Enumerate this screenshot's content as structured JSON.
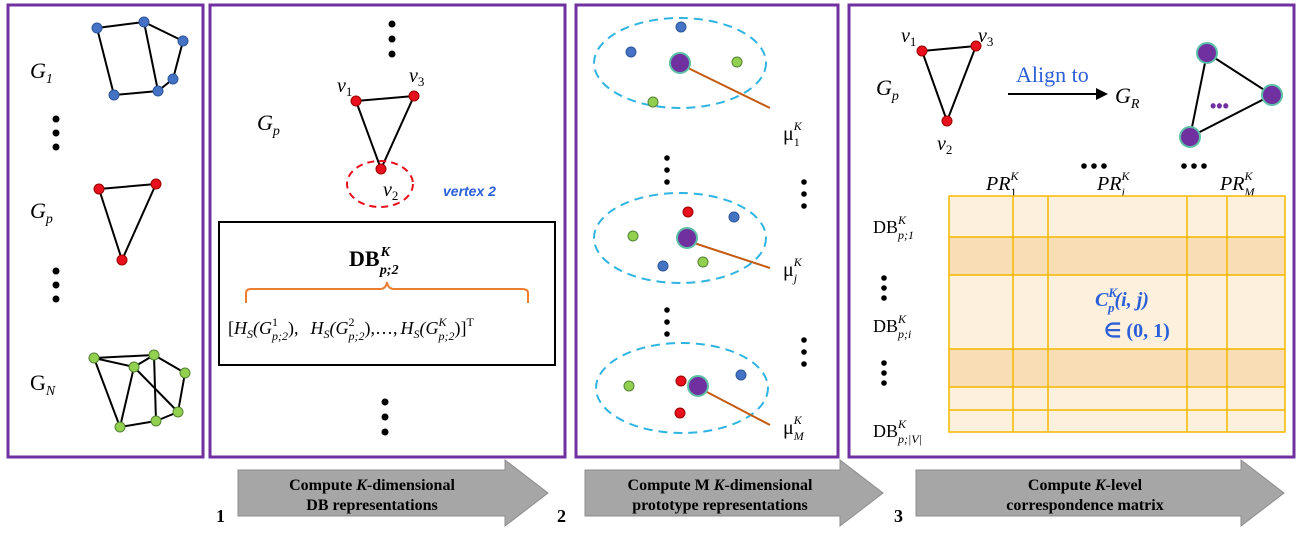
{
  "panel1": {
    "graph_labels": {
      "g1": "G",
      "g1_sub": "1",
      "gp": "G",
      "gp_sub": "p",
      "gn": "G",
      "gn_sub": "N"
    }
  },
  "panel2": {
    "graph_label": "G",
    "graph_label_sub": "p",
    "v1": "v",
    "v1_sub": "1",
    "v3": "v",
    "v3_sub": "3",
    "v2": "v",
    "v2_sub": "2",
    "vertex_note": "vertex 2",
    "db_title": "DB",
    "db_title_sup": "K",
    "db_title_sub": "p;2",
    "vector_formula": {
      "open": "[",
      "h": "H",
      "s": "S",
      "g": "(G",
      "term1_sup": "1",
      "term1_sub": "p;2",
      "term2_sup": "2",
      "term2_sub": "p;2",
      "term3_sup": "K",
      "term3_sub": "p;2",
      "sep1": "),",
      "sep2": "),…,",
      "close": ")]",
      "transpose": "T"
    }
  },
  "panel3": {
    "mu_labels": [
      {
        "mu": "μ",
        "sup": "K",
        "sub": "1"
      },
      {
        "mu": "μ",
        "sup": "K",
        "sub": "j"
      },
      {
        "mu": "μ",
        "sup": "K",
        "sub": "M"
      }
    ]
  },
  "panel4": {
    "gp": "G",
    "gp_sub": "p",
    "v1": "v",
    "v1_sub": "1",
    "v3": "v",
    "v3_sub": "3",
    "v2": "v",
    "v2_sub": "2",
    "align_label": "Align to",
    "gr": "G",
    "gr_sub": "R",
    "ellipsis": "•••",
    "col_headers": [
      {
        "base": "PR",
        "sup": "K",
        "sub": "1"
      },
      {
        "base": "PR",
        "sup": "K",
        "sub": "j"
      },
      {
        "base": "PR",
        "sup": "K",
        "sub": "M"
      }
    ],
    "row_headers": [
      {
        "base": "DB",
        "sup": "K",
        "sub": "p;1"
      },
      {
        "base": "DB",
        "sup": "K",
        "sub": "p;i"
      },
      {
        "base": "DB",
        "sup": "K",
        "sub": "p;|V|"
      }
    ],
    "matrix_entry": {
      "c": "C",
      "sup": "K",
      "sub": "p",
      "args": "(i, j)",
      "range": "∈ (0, 1)"
    }
  },
  "steps": [
    {
      "number": "1",
      "line1_a": "Compute ",
      "line1_k": "K",
      "line1_b": "-dimensional",
      "line2": "DB representations"
    },
    {
      "number": "2",
      "line1_a": "Compute M ",
      "line1_k": "K",
      "line1_b": "-dimensional",
      "line2": "prototype representations"
    },
    {
      "number": "3",
      "line1_a": "Compute ",
      "line1_k": "K",
      "line1_b": "-level",
      "line2": "correspondence matrix"
    }
  ],
  "colors": {
    "panel_border": "#7030a0",
    "blue_node": "#4472c4",
    "red_node": "#e8101c",
    "green_node": "#92d050",
    "purple_node": "#7030a0",
    "dashed_blue": "#2eb4e0",
    "dashed_red": "#e8101c",
    "brace": "#ed7d31",
    "mu_line": "#c55a11",
    "grid_fill_light": "#fdf0dc",
    "grid_fill_dark": "#f9ddb4",
    "grid_line": "#f5b800",
    "arrow_fill": "#a6a6a6",
    "text_blue": "#2b5fd9"
  }
}
